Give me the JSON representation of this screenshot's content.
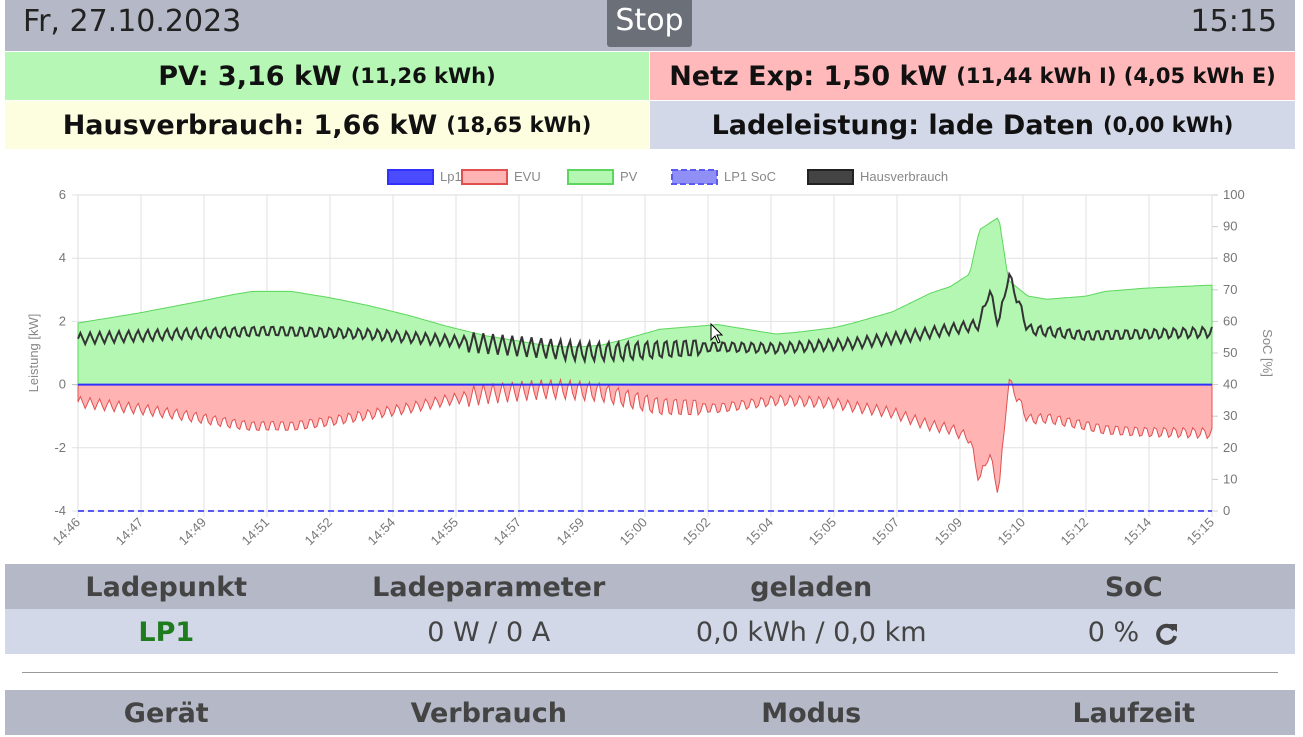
{
  "header": {
    "date": "Fr, 27.10.2023",
    "stop_label": "Stop",
    "time": "15:15"
  },
  "stats": {
    "pv": {
      "main": "PV: 3,16 kW",
      "sub": "(11,26 kWh)"
    },
    "netz": {
      "main": "Netz Exp: 1,50 kW",
      "sub": "(11,44 kWh I) (4,05 kWh E)"
    },
    "haus": {
      "main": "Hausverbrauch: 1,66 kW",
      "sub": "(18,65 kWh)"
    },
    "lade": {
      "main": "Ladeleistung: lade Daten",
      "sub": "(0,00 kWh)"
    }
  },
  "chart_data": {
    "type": "area",
    "title": "",
    "ylabel": "Leistung [kW]",
    "y2label": "SoC [%]",
    "ylim": [
      -4,
      6
    ],
    "y2lim": [
      0,
      100
    ],
    "yticks": [
      "6",
      "4",
      "2",
      "0",
      "-2",
      "-4"
    ],
    "y2ticks": [
      "100",
      "90",
      "80",
      "70",
      "60",
      "50",
      "40",
      "30",
      "20",
      "10",
      "0"
    ],
    "xticks": [
      "14:46",
      "14:47",
      "14:49",
      "14:51",
      "14:52",
      "14:54",
      "14:55",
      "14:57",
      "14:59",
      "15:00",
      "15:02",
      "15:04",
      "15:05",
      "15:07",
      "15:09",
      "15:10",
      "15:12",
      "15:14",
      "15:15"
    ],
    "legend_position": "top",
    "legend": [
      {
        "name": "Lp1",
        "color": "#3030ff",
        "fill": "#4b4bff",
        "dashed": false
      },
      {
        "name": "EVU",
        "color": "#e05050",
        "fill": "#ffb3b3",
        "dashed": false
      },
      {
        "name": "PV",
        "color": "#5cd65c",
        "fill": "#b3f7b3",
        "dashed": false
      },
      {
        "name": "LP1 SoC",
        "color": "#5a5af0",
        "fill": "#8f8ff5",
        "dashed": true
      },
      {
        "name": "Hausverbrauch",
        "color": "#222222",
        "fill": "#444444",
        "dashed": false
      }
    ],
    "grid": true,
    "series": [
      {
        "name": "PV",
        "x_minutes": [
          0,
          3,
          6,
          8,
          9,
          11,
          13,
          15,
          17,
          19,
          21,
          23,
          24,
          25,
          26,
          27,
          28,
          30,
          33,
          36,
          37,
          39,
          40,
          42,
          43,
          44,
          45,
          46,
          46.5,
          47,
          47.5,
          48,
          49,
          50,
          52,
          53,
          55,
          58.5
        ],
        "values": [
          1.95,
          2.25,
          2.6,
          2.85,
          2.95,
          2.95,
          2.75,
          2.5,
          2.2,
          1.85,
          1.55,
          1.35,
          1.25,
          1.2,
          1.2,
          1.25,
          1.4,
          1.75,
          1.9,
          1.6,
          1.65,
          1.8,
          1.95,
          2.3,
          2.6,
          2.9,
          3.1,
          3.5,
          4.9,
          5.1,
          5.3,
          3.3,
          2.8,
          2.7,
          2.8,
          2.95,
          3.05,
          3.15
        ]
      },
      {
        "name": "Hausverbrauch",
        "base_x_minutes": [
          0,
          5,
          10,
          15,
          20,
          24,
          26,
          28,
          33,
          36,
          40,
          43,
          45,
          46.5,
          47,
          47.5,
          48,
          49,
          52,
          55,
          58.5
        ],
        "base_values": [
          1.45,
          1.6,
          1.7,
          1.6,
          1.35,
          1.15,
          1.05,
          1.05,
          1.2,
          1.15,
          1.3,
          1.55,
          1.75,
          1.9,
          3.0,
          1.9,
          3.5,
          1.75,
          1.55,
          1.6,
          1.66
        ]
      },
      {
        "name": "EVU",
        "note": "mirror of PV minus Hausverbrauch (export shown negative)"
      },
      {
        "name": "Lp1",
        "values_constant": 0
      },
      {
        "name": "LP1 SoC",
        "values_constant": 0
      }
    ],
    "x_range_minutes": [
      0,
      58.5
    ]
  },
  "ladepunkt_table": {
    "headers": [
      "Ladepunkt",
      "Ladeparameter",
      "geladen",
      "SoC"
    ],
    "rows": [
      {
        "name": "LP1",
        "param": "0 W / 0 A",
        "geladen": "0,0 kWh / 0,0 km",
        "soc": "0 %"
      }
    ]
  },
  "device_table": {
    "headers": [
      "Gerät",
      "Verbrauch",
      "Modus",
      "Laufzeit"
    ]
  },
  "colors": {
    "header_bg": "#b5b9c7",
    "pv_bg": "#b6f7b6",
    "netz_bg": "#ffb9ba",
    "haus_bg": "#fdfde0",
    "lade_bg": "#d2d8e8",
    "lp_name": "#1e7b1e"
  },
  "icons": {
    "soc_refresh": "refresh-icon"
  }
}
